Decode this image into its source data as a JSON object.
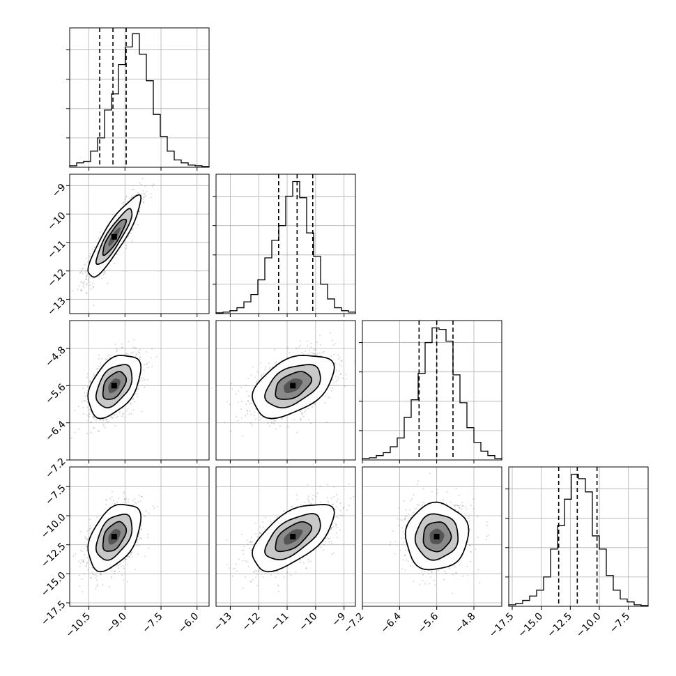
{
  "chart_data": {
    "type": "corner",
    "grid": true,
    "parameters": [
      {
        "range": [
          -11.3,
          -5.5
        ],
        "ticks": [
          -10.5,
          -9.0,
          -7.5,
          -6.0
        ],
        "tick_labels": [
          "−10.5",
          "−9.0",
          "−7.5",
          "−6.0"
        ],
        "median": -9.5,
        "q16": -10.05,
        "q84": -8.95,
        "hist_yticks": [
          0.2,
          0.4,
          0.6,
          0.8
        ]
      },
      {
        "range": [
          -13.5,
          -8.6
        ],
        "ticks": [
          -13,
          -12,
          -11,
          -10,
          -9
        ],
        "tick_labels": [
          "−13",
          "−12",
          "−11",
          "−10",
          "−9"
        ],
        "median": -10.65,
        "q16": -11.3,
        "q84": -10.1,
        "hist_yticks": [
          0.2,
          0.4,
          0.6,
          0.8
        ]
      },
      {
        "range": [
          -7.2,
          -4.2
        ],
        "ticks": [
          -7.2,
          -6.4,
          -5.6,
          -4.8
        ],
        "tick_labels": [
          "−7.2",
          "−6.4",
          "−5.6",
          "−4.8"
        ],
        "median": -5.6,
        "q16": -5.98,
        "q84": -5.25,
        "hist_yticks": [
          0.2,
          0.4,
          0.6,
          0.8
        ]
      },
      {
        "range": [
          -17.8,
          -5.8
        ],
        "ticks": [
          -17.5,
          -15.0,
          -12.5,
          -10.0,
          -7.5
        ],
        "tick_labels": [
          "−17.5",
          "−15.0",
          "−12.5",
          "−10.0",
          "−7.5"
        ],
        "median": -11.9,
        "q16": -13.5,
        "q84": -10.2,
        "hist_yticks": [
          0.2,
          0.4,
          0.6,
          0.8
        ]
      }
    ],
    "histograms": [
      [
        0.01,
        0.03,
        0.04,
        0.11,
        0.2,
        0.39,
        0.5,
        0.7,
        0.82,
        0.91,
        0.77,
        0.59,
        0.36,
        0.21,
        0.11,
        0.05,
        0.03,
        0.015,
        0.01,
        0.005
      ],
      [
        0.005,
        0.01,
        0.02,
        0.04,
        0.08,
        0.13,
        0.23,
        0.38,
        0.5,
        0.6,
        0.8,
        0.9,
        0.79,
        0.55,
        0.39,
        0.2,
        0.1,
        0.04,
        0.02,
        0.01
      ],
      [
        0.01,
        0.015,
        0.03,
        0.05,
        0.09,
        0.15,
        0.29,
        0.41,
        0.59,
        0.8,
        0.9,
        0.89,
        0.81,
        0.58,
        0.39,
        0.22,
        0.12,
        0.06,
        0.03,
        0.01
      ],
      [
        0.01,
        0.02,
        0.04,
        0.07,
        0.11,
        0.2,
        0.39,
        0.55,
        0.73,
        0.9,
        0.87,
        0.78,
        0.48,
        0.39,
        0.21,
        0.11,
        0.05,
        0.03,
        0.01,
        0.005
      ]
    ],
    "pairs": [
      {
        "x": 0,
        "y": 1,
        "mean": [
          -9.45,
          -10.8
        ],
        "sd": [
          0.55,
          0.72
        ],
        "rho": 0.88
      },
      {
        "x": 0,
        "y": 2,
        "mean": [
          -9.45,
          -5.6
        ],
        "sd": [
          0.55,
          0.34
        ],
        "rho": 0.45
      },
      {
        "x": 1,
        "y": 2,
        "mean": [
          -10.8,
          -5.6
        ],
        "sd": [
          0.72,
          0.34
        ],
        "rho": 0.45
      },
      {
        "x": 0,
        "y": 3,
        "mean": [
          -9.45,
          -11.8
        ],
        "sd": [
          0.55,
          1.45
        ],
        "rho": 0.45
      },
      {
        "x": 1,
        "y": 3,
        "mean": [
          -10.8,
          -11.8
        ],
        "sd": [
          0.72,
          1.45
        ],
        "rho": 0.6
      },
      {
        "x": 2,
        "y": 3,
        "mean": [
          -5.6,
          -11.8
        ],
        "sd": [
          0.34,
          1.45
        ],
        "rho": 0.05
      }
    ]
  }
}
